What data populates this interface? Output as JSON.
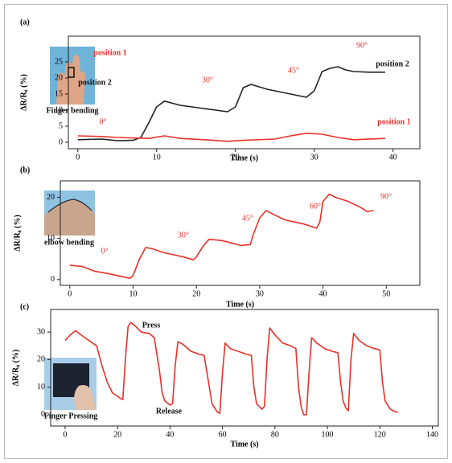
{
  "chart_data": [
    {
      "type": "line",
      "panel": "(a)",
      "xlabel": "Time (s)",
      "ylabel": "ΔR/R₀ (%)",
      "xlim": [
        -1.2,
        43.4
      ],
      "xticks": [
        0,
        10,
        20,
        30,
        40
      ],
      "ylim": [
        -2,
        33
      ],
      "yticks": [
        0,
        5,
        10,
        15,
        20,
        25
      ],
      "series": [
        {
          "name": "position 2",
          "color": "#222222",
          "x": [
            0,
            3,
            5,
            7,
            8,
            9,
            10,
            11,
            13,
            16,
            19,
            20,
            21,
            22,
            24,
            27,
            29,
            30,
            31,
            32,
            33,
            34,
            35,
            37,
            39
          ],
          "values": [
            0.8,
            1,
            0.5,
            0.6,
            1.5,
            6,
            11,
            12.8,
            11.5,
            10.5,
            9.5,
            11,
            17,
            18,
            16.5,
            15,
            14,
            16,
            22,
            23,
            23.5,
            22.5,
            22,
            21.8,
            21.8
          ]
        },
        {
          "name": "position 1",
          "color": "#e8302a",
          "x": [
            0,
            3,
            5,
            9,
            11,
            13,
            16,
            19,
            21,
            25,
            27,
            29,
            31,
            33,
            35,
            39
          ],
          "values": [
            2,
            1.8,
            1.5,
            1.2,
            2,
            1.2,
            0.8,
            0.3,
            0.6,
            1,
            2,
            2.8,
            2.5,
            1.5,
            0.8,
            1.2
          ]
        }
      ],
      "annotations": [
        "0°",
        "30°",
        "45°",
        "90°",
        "position 2",
        "position 1",
        "position 1",
        "position 2",
        "Finger bending"
      ]
    },
    {
      "type": "line",
      "panel": "(b)",
      "xlabel": "Time (s)",
      "ylabel": "ΔR/R₀ (%)",
      "xlim": [
        -1.5,
        55.3
      ],
      "xticks": [
        0,
        10,
        20,
        30,
        40,
        50
      ],
      "ylim": [
        -1.4,
        24
      ],
      "yticks": [
        0,
        10,
        20
      ],
      "series": [
        {
          "name": "elbow",
          "color": "#e8302a",
          "x": [
            0,
            2,
            4,
            6,
            8,
            9.5,
            10,
            11,
            12,
            13,
            15,
            18,
            19.5,
            20,
            21,
            22,
            24,
            27,
            28.5,
            29,
            30,
            31,
            32,
            34,
            37,
            39,
            39.5,
            40,
            41,
            42,
            44,
            46,
            47,
            48
          ],
          "values": [
            3.5,
            3.2,
            2,
            1.5,
            0.8,
            0.3,
            1,
            5,
            7.8,
            7.5,
            6.5,
            5.5,
            4.8,
            5.5,
            8,
            9.8,
            9.5,
            8.3,
            8.5,
            11,
            15,
            16.8,
            16,
            14.5,
            13.5,
            12.5,
            14,
            19,
            20.8,
            20,
            19,
            17.5,
            16.5,
            16.8
          ]
        }
      ],
      "annotations": [
        "0°",
        "30°",
        "45°",
        "60°",
        "90°",
        "elbow bending"
      ]
    },
    {
      "type": "line",
      "panel": "(c)",
      "xlabel": "Time (s)",
      "ylabel": "ΔR/R₀ (%)",
      "xlim": [
        -5.5,
        142.3
      ],
      "xticks": [
        0,
        20,
        40,
        60,
        80,
        100,
        120,
        140
      ],
      "ylim": [
        -4.1,
        38.2
      ],
      "yticks": [
        0,
        10,
        20,
        30
      ],
      "series": [
        {
          "name": "pressing",
          "color": "#e8302a",
          "x": [
            0,
            2,
            4,
            6,
            9,
            12,
            14,
            16,
            18,
            21,
            22,
            23,
            24,
            25,
            27,
            29,
            32,
            34,
            36,
            37,
            38,
            40,
            41,
            42,
            43,
            45,
            48,
            51,
            53,
            55,
            56,
            58,
            59,
            60,
            61,
            63,
            66,
            69,
            71,
            72,
            73,
            75,
            76,
            77,
            78,
            80,
            83,
            86,
            88,
            89,
            90,
            91,
            92,
            93,
            94,
            96,
            99,
            102,
            104,
            105,
            106,
            107,
            108,
            109,
            110,
            112,
            115,
            118,
            120,
            121,
            122,
            124,
            126,
            127
          ],
          "values": [
            27,
            29,
            30.5,
            29,
            27,
            25,
            18,
            12,
            8,
            6,
            5.5,
            20,
            32,
            33.5,
            32,
            30,
            29.5,
            28,
            16,
            8,
            5,
            3.5,
            4,
            18,
            26.5,
            25.5,
            23,
            22,
            21.5,
            10,
            4,
            1,
            0.5,
            15,
            26,
            24,
            23,
            22,
            21.5,
            10,
            4,
            2,
            3,
            20,
            31.5,
            29,
            26,
            25,
            24,
            10,
            3,
            0,
            0,
            15,
            28,
            26,
            24,
            23,
            22.5,
            12,
            5,
            2.5,
            1.5,
            20,
            29.5,
            27,
            25,
            24,
            23.5,
            12,
            5,
            2,
            1,
            1
          ]
        }
      ],
      "annotations": [
        "Press",
        "Release",
        "Finger Pressing"
      ]
    }
  ]
}
